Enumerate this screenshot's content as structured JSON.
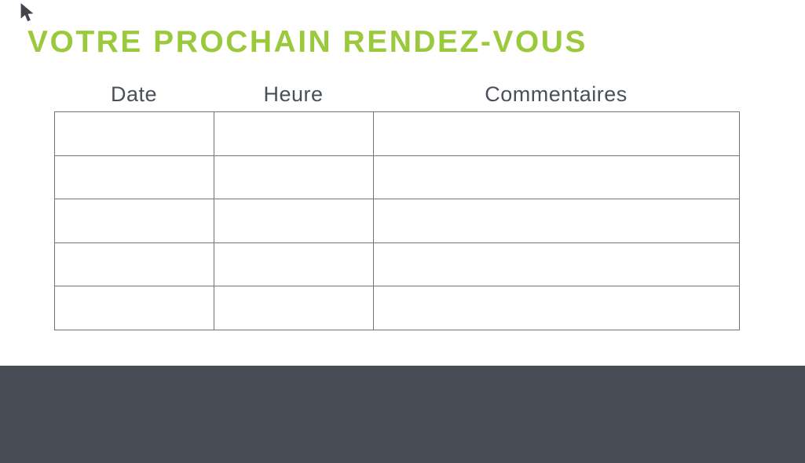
{
  "slide": {
    "background_color": "#FFFFFF",
    "accent_green": "#9ACA3C",
    "slate_dark": "#474B53",
    "slate_text": "#4A5059",
    "table_border_color": "#70757C",
    "cursor_color": "#41464D"
  },
  "title": {
    "text": "VOTRE PROCHAIN RENDEZ-VOUS"
  },
  "appointments_table": {
    "headers": [
      "Date",
      "Heure",
      "Commentaires"
    ],
    "rows": [
      [
        "",
        "",
        ""
      ],
      [
        "",
        "",
        ""
      ],
      [
        "",
        "",
        ""
      ],
      [
        "",
        "",
        ""
      ],
      [
        "",
        "",
        ""
      ]
    ]
  },
  "footer": {
    "text": ""
  }
}
